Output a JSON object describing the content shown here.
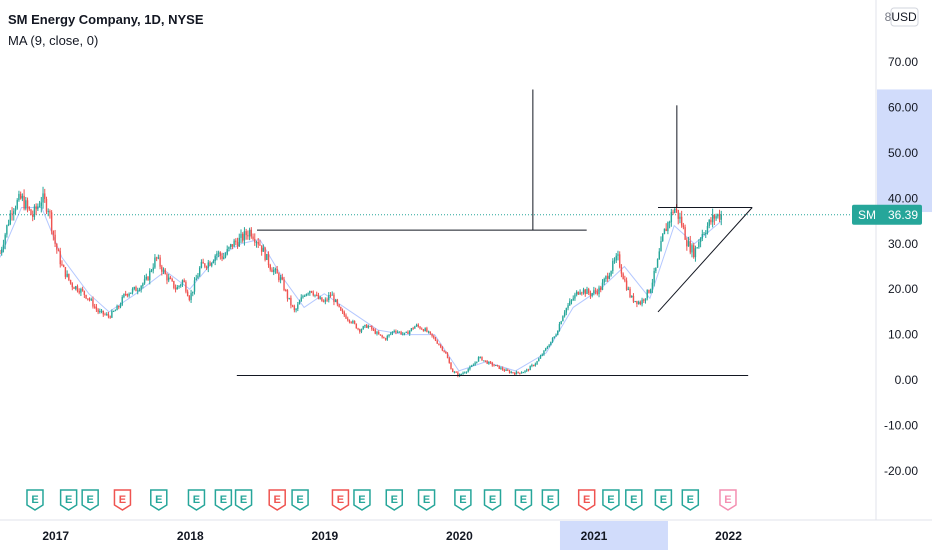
{
  "header": {
    "title": "SM Energy Company, 1D, NYSE",
    "indicator": "MA (9, close, 0)",
    "currency": "USD",
    "currency_prefix": "8"
  },
  "last_price": {
    "symbol": "SM",
    "value": "36.39",
    "value_num": 36.39
  },
  "colors": {
    "up": "#26a69a",
    "down": "#ef5350",
    "ma": "#2962ff",
    "price_tag": "#26a69a",
    "axis_highlight": "#d1dcfb",
    "earnings_up": "#26a69a",
    "earnings_down": "#ef5350",
    "earnings_future": "#f48fb1"
  },
  "chart_data": {
    "type": "line",
    "series_style": "candlestick",
    "ylim": [
      -22,
      76
    ],
    "yticks": [
      "70.00",
      "60.00",
      "50.00",
      "40.00",
      "30.00",
      "20.00",
      "10.00",
      "0.00",
      "-10.00",
      "-20.00"
    ],
    "ytick_values": [
      70,
      60,
      50,
      40,
      30,
      20,
      10,
      0,
      -10,
      -20
    ],
    "highlight_y_range": [
      37,
      64
    ],
    "xticks": [
      "2017",
      "2018",
      "2019",
      "2020",
      "2021",
      "2022"
    ],
    "xtick_values": [
      2017.0,
      2018.0,
      2019.0,
      2020.0,
      2021.0,
      2022.0
    ],
    "xlim": [
      2016.69,
      2023.2
    ],
    "highlight_x_tick": "2021",
    "price": {
      "x": [
        2016.69,
        2016.78,
        2016.85,
        2016.93,
        2017.0,
        2017.05,
        2017.1,
        2017.15,
        2017.22,
        2017.28,
        2017.35,
        2017.42,
        2017.5,
        2017.57,
        2017.62,
        2017.7,
        2017.78,
        2017.85,
        2017.92,
        2018.0,
        2018.05,
        2018.1,
        2018.18,
        2018.25,
        2018.3,
        2018.35,
        2018.42,
        2018.48,
        2018.55,
        2018.62,
        2018.7,
        2018.78,
        2018.83,
        2018.88,
        2018.95,
        2019.0,
        2019.05,
        2019.1,
        2019.15,
        2019.22,
        2019.3,
        2019.36,
        2019.42,
        2019.5,
        2019.55,
        2019.62,
        2019.7,
        2019.78,
        2019.85,
        2019.92,
        2020.0,
        2020.05,
        2020.1,
        2020.15,
        2020.2,
        2020.25,
        2020.3,
        2020.38,
        2020.45,
        2020.52,
        2020.6,
        2020.68,
        2020.75,
        2020.82,
        2020.88,
        2020.95,
        2021.0,
        2021.08,
        2021.15,
        2021.22,
        2021.28,
        2021.33,
        2021.38,
        2021.45,
        2021.52,
        2021.57,
        2021.62,
        2021.7,
        2021.75,
        2021.8,
        2021.85,
        2021.9,
        2021.95,
        2022.0,
        2022.05
      ],
      "y": [
        28,
        38,
        40,
        36,
        40,
        38,
        30,
        25,
        21,
        20,
        18,
        15,
        14,
        16,
        19,
        20,
        22,
        27,
        23,
        20,
        22,
        18,
        25,
        26,
        28,
        27,
        30,
        31,
        33,
        30,
        25,
        22,
        18,
        15,
        19,
        20,
        18,
        17,
        19,
        15,
        13,
        11,
        12,
        10,
        9,
        11,
        10,
        12,
        11,
        9,
        6,
        2,
        1,
        2,
        3,
        5,
        4,
        3,
        2,
        1.5,
        2,
        4,
        7,
        10,
        15,
        18,
        20,
        19,
        20,
        24,
        27,
        22,
        18,
        17,
        20,
        25,
        32,
        38,
        35,
        30,
        28,
        32,
        34,
        36,
        36.39
      ]
    },
    "ma9": {
      "x": [
        2016.69,
        2016.85,
        2017.0,
        2017.15,
        2017.35,
        2017.5,
        2017.7,
        2017.92,
        2018.1,
        2018.3,
        2018.48,
        2018.62,
        2018.78,
        2018.95,
        2019.1,
        2019.3,
        2019.5,
        2019.7,
        2019.92,
        2020.1,
        2020.3,
        2020.52,
        2020.75,
        2020.95,
        2021.15,
        2021.33,
        2021.52,
        2021.7,
        2021.85,
        2022.05
      ],
      "y": [
        27,
        38,
        38,
        27,
        19,
        15,
        19,
        24,
        20,
        27,
        30,
        31,
        23,
        16,
        19,
        15,
        11,
        10,
        10,
        2,
        4,
        2,
        6,
        16,
        20,
        25,
        18,
        34,
        30,
        35
      ]
    },
    "drawings": [
      {
        "name": "resistance-line",
        "x": [
          2018.6,
          2021.05
        ],
        "y": [
          33,
          33
        ]
      },
      {
        "name": "support-line",
        "x": [
          2018.45,
          2022.25
        ],
        "y": [
          1,
          1
        ]
      },
      {
        "name": "pole-line-1",
        "x": [
          2020.65,
          2020.65
        ],
        "y": [
          33,
          64
        ]
      },
      {
        "name": "pole-line-2",
        "x": [
          2021.72,
          2021.72
        ],
        "y": [
          38,
          60.5
        ]
      },
      {
        "name": "triangle-top",
        "x": [
          2021.58,
          2022.28
        ],
        "y": [
          38,
          38
        ]
      },
      {
        "name": "triangle-bottom",
        "x": [
          2021.58,
          2022.28
        ],
        "y": [
          15,
          38
        ]
      }
    ],
    "earnings": {
      "x": [
        2016.95,
        2017.2,
        2017.36,
        2017.6,
        2017.87,
        2018.15,
        2018.35,
        2018.5,
        2018.75,
        2018.92,
        2019.22,
        2019.38,
        2019.62,
        2019.86,
        2020.13,
        2020.35,
        2020.58,
        2020.78,
        2021.05,
        2021.23,
        2021.4,
        2021.62,
        2021.82,
        2022.1
      ],
      "labels": [
        "E",
        "E",
        "E",
        "E",
        "E",
        "E",
        "E",
        "E",
        "E",
        "E",
        "E",
        "E",
        "E",
        "E",
        "E",
        "E",
        "E",
        "E",
        "E",
        "E",
        "E",
        "E",
        "E",
        "E"
      ],
      "kind": [
        "up",
        "up",
        "up",
        "down",
        "up",
        "up",
        "up",
        "up",
        "down",
        "up",
        "down",
        "up",
        "up",
        "up",
        "up",
        "up",
        "up",
        "up",
        "down",
        "up",
        "up",
        "up",
        "up",
        "future"
      ]
    }
  }
}
